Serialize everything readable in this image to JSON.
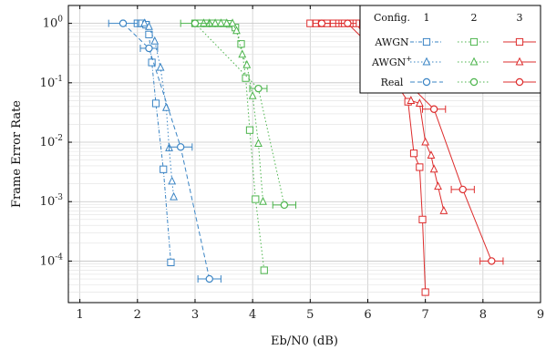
{
  "chart_data": {
    "type": "scatter",
    "xlabel": "Eb/N0 (dB)",
    "ylabel": "Frame Error Rate",
    "xlim": [
      0.8,
      9
    ],
    "ylim_log": [
      2e-05,
      2
    ],
    "y_scale": "log",
    "x_ticks": [
      "1",
      "2",
      "3",
      "4",
      "5",
      "6",
      "7",
      "8",
      "9"
    ],
    "y_ticks": [
      "10^0",
      "10^-1",
      "10^-2",
      "10^-3",
      "10^-4"
    ],
    "grid": true,
    "legend": {
      "position": "top-right",
      "header": "Config.",
      "columns": [
        "1",
        "2",
        "3"
      ],
      "rows": [
        "AWGN",
        "AWGN+",
        "Real"
      ]
    },
    "colors": {
      "1": "#3a84c4",
      "2": "#4cb44c",
      "3": "#dd2c2c"
    },
    "series": [
      {
        "config": "1",
        "type": "AWGN",
        "marker": "square",
        "style": "dash-dot",
        "points": [
          [
            2.0,
            1.0
          ],
          [
            2.08,
            1.0
          ],
          [
            2.15,
            0.95
          ],
          [
            2.2,
            0.65
          ],
          [
            2.25,
            0.22
          ],
          [
            2.32,
            0.045
          ],
          [
            2.45,
            0.0035
          ],
          [
            2.58,
            9.5e-05
          ]
        ]
      },
      {
        "config": "1",
        "type": "AWGN+",
        "marker": "triangle",
        "style": "dotted",
        "points": [
          [
            2.12,
            1.0
          ],
          [
            2.2,
            0.88
          ],
          [
            2.3,
            0.5
          ],
          [
            2.4,
            0.18
          ],
          [
            2.5,
            0.038
          ],
          [
            2.55,
            0.008
          ],
          [
            2.6,
            0.0022
          ],
          [
            2.63,
            0.0012
          ]
        ]
      },
      {
        "config": "1",
        "type": "Real",
        "marker": "circle",
        "style": "dashed",
        "points": [
          [
            1.75,
            1.0
          ],
          [
            2.2,
            0.38
          ],
          [
            2.75,
            0.0083
          ],
          [
            3.25,
            5e-05
          ]
        ],
        "xerr": [
          0.25,
          0.15,
          0.2,
          0.2
        ]
      },
      {
        "config": "2",
        "type": "AWGN",
        "marker": "square",
        "style": "dotted",
        "points": [
          [
            3.0,
            1.0
          ],
          [
            3.1,
            1.0
          ],
          [
            3.2,
            1.0
          ],
          [
            3.3,
            1.0
          ],
          [
            3.4,
            1.0
          ],
          [
            3.5,
            1.0
          ],
          [
            3.6,
            0.98
          ],
          [
            3.7,
            0.85
          ],
          [
            3.8,
            0.45
          ],
          [
            3.88,
            0.12
          ],
          [
            3.95,
            0.016
          ],
          [
            4.05,
            0.0011
          ],
          [
            4.2,
            7e-05
          ]
        ]
      },
      {
        "config": "2",
        "type": "AWGN+",
        "marker": "triangle",
        "style": "dotted",
        "points": [
          [
            3.15,
            1.0
          ],
          [
            3.25,
            1.0
          ],
          [
            3.35,
            1.0
          ],
          [
            3.45,
            1.0
          ],
          [
            3.55,
            1.0
          ],
          [
            3.65,
            1.0
          ],
          [
            3.72,
            0.75
          ],
          [
            3.82,
            0.3
          ],
          [
            3.9,
            0.2
          ],
          [
            4.0,
            0.06
          ],
          [
            4.1,
            0.0095
          ],
          [
            4.18,
            0.001
          ]
        ]
      },
      {
        "config": "2",
        "type": "Real",
        "marker": "circle",
        "style": "dotted",
        "points": [
          [
            3.0,
            1.0
          ],
          [
            4.1,
            0.08
          ],
          [
            4.55,
            0.00088
          ]
        ],
        "xerr": [
          0.25,
          0.15,
          0.2
        ]
      },
      {
        "config": "3",
        "type": "AWGN",
        "marker": "square",
        "style": "solid",
        "points": [
          [
            5.0,
            1.0
          ],
          [
            5.1,
            1.0
          ],
          [
            5.2,
            1.0
          ],
          [
            5.3,
            1.0
          ],
          [
            5.4,
            1.0
          ],
          [
            5.5,
            1.0
          ],
          [
            5.6,
            1.0
          ],
          [
            5.7,
            1.0
          ],
          [
            5.8,
            1.0
          ],
          [
            6.7,
            0.048
          ],
          [
            6.8,
            0.0065
          ],
          [
            6.9,
            0.0038
          ],
          [
            6.95,
            0.0005
          ],
          [
            7.0,
            3e-05
          ]
        ]
      },
      {
        "config": "3",
        "type": "AWGN+",
        "marker": "triangle",
        "style": "solid",
        "points": [
          [
            6.75,
            0.05
          ],
          [
            6.9,
            0.045
          ],
          [
            7.0,
            0.01
          ],
          [
            7.1,
            0.006
          ],
          [
            7.15,
            0.0035
          ],
          [
            7.22,
            0.0018
          ],
          [
            7.32,
            0.0007
          ]
        ]
      },
      {
        "config": "3",
        "type": "Real",
        "marker": "circle",
        "style": "solid",
        "points": [
          [
            5.2,
            1.0
          ],
          [
            5.65,
            1.0
          ],
          [
            7.15,
            0.036
          ],
          [
            7.65,
            0.0016
          ],
          [
            8.15,
            0.0001
          ]
        ],
        "xerr": [
          0.15,
          0.15,
          0.2,
          0.2,
          0.2
        ]
      }
    ]
  }
}
